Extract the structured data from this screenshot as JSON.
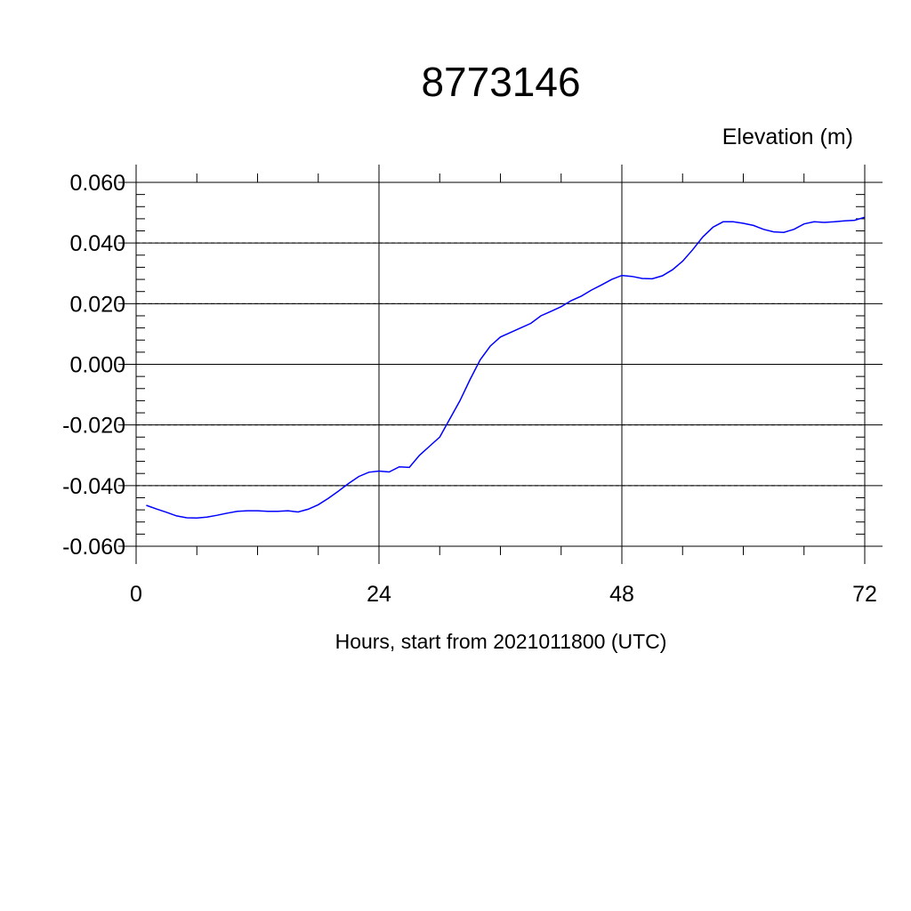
{
  "chart_data": {
    "type": "line",
    "title": "8773146",
    "ylabel": "Elevation (m)",
    "xlabel": "Hours, start from 2021011800 (UTC)",
    "xlim": [
      0,
      72
    ],
    "ylim": [
      -0.06,
      0.06
    ],
    "x_ticks": [
      0,
      24,
      48,
      72
    ],
    "x_tick_labels": [
      "0",
      "24",
      "48",
      "72"
    ],
    "y_ticks": [
      -0.06,
      -0.04,
      -0.02,
      0.0,
      0.02,
      0.04,
      0.06
    ],
    "y_tick_labels": [
      "-0.060",
      "-0.040",
      "-0.020",
      "0.000",
      "0.020",
      "0.040",
      "0.060"
    ],
    "grid": true,
    "line_color": "#0000ff",
    "series": [
      {
        "x": [
          1,
          2,
          3,
          4,
          5,
          6,
          7,
          8,
          9,
          10,
          11,
          12,
          13,
          14,
          15,
          16,
          17,
          18,
          19,
          20,
          21,
          22,
          23,
          24,
          25,
          26,
          27,
          28,
          29,
          30,
          31,
          32,
          33,
          34,
          35,
          36,
          37,
          38,
          39,
          40,
          41,
          42,
          43,
          44,
          45,
          46,
          47,
          48,
          49,
          50,
          51,
          52,
          53,
          54,
          55,
          56,
          57,
          58,
          59,
          60,
          61,
          62,
          63,
          64,
          65,
          66,
          67,
          68,
          69,
          70,
          71,
          72
        ],
        "values": [
          -0.0465,
          -0.0477,
          -0.0488,
          -0.05,
          -0.0506,
          -0.0507,
          -0.0504,
          -0.0498,
          -0.0491,
          -0.0485,
          -0.0483,
          -0.0483,
          -0.0485,
          -0.0485,
          -0.0483,
          -0.0487,
          -0.0478,
          -0.0463,
          -0.0442,
          -0.0418,
          -0.0393,
          -0.037,
          -0.0356,
          -0.0352,
          -0.0355,
          -0.0338,
          -0.034,
          -0.03,
          -0.027,
          -0.024,
          -0.018,
          -0.012,
          -0.005,
          0.0015,
          0.006,
          0.009,
          0.0105,
          0.012,
          0.0135,
          0.016,
          0.0175,
          0.019,
          0.021,
          0.0225,
          0.0245,
          0.0262,
          0.028,
          0.0293,
          0.029,
          0.0283,
          0.0282,
          0.0292,
          0.0312,
          0.034,
          0.0378,
          0.042,
          0.0452,
          0.047,
          0.047,
          0.0465,
          0.0458,
          0.0445,
          0.0437,
          0.0435,
          0.0445,
          0.0463,
          0.047,
          0.0468,
          0.047,
          0.0473,
          0.0475,
          0.0485
        ]
      }
    ]
  }
}
